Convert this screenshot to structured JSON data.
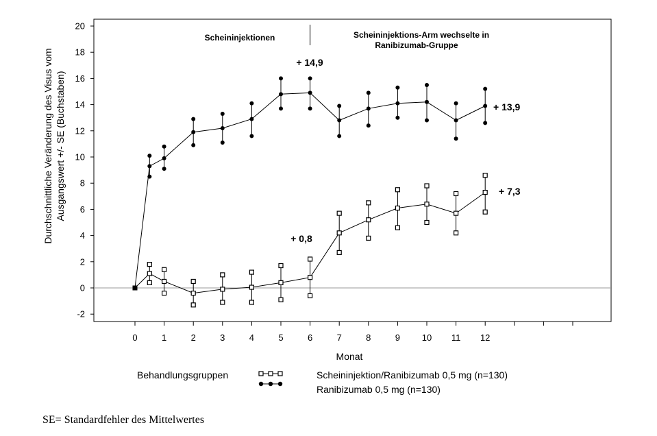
{
  "chart_data": {
    "type": "line",
    "ylabel_line1": "Durchschnittliche Veränderung des Visus vom",
    "ylabel_line2": "Ausgangswert +/- SE (Buchstaben)",
    "xlabel": "Monat",
    "ylim": [
      -2,
      20
    ],
    "yticks": [
      -2,
      0,
      2,
      4,
      6,
      8,
      10,
      12,
      14,
      16,
      18,
      20
    ],
    "xticks": [
      0,
      1,
      2,
      3,
      4,
      5,
      6,
      7,
      8,
      9,
      10,
      11,
      12
    ],
    "phase_left": "Scheininjektionen",
    "phase_right_line1": "Scheininjektions-Arm wechselte in",
    "phase_right_line2": "Ranibizumab-Gruppe",
    "legend_title": "Behandlungsgruppen",
    "series": [
      {
        "name": "Scheininjektion/Ranibizumab 0,5 mg (n=130)",
        "marker": "square",
        "x": [
          0,
          0.5,
          1,
          2,
          3,
          4,
          5,
          6,
          7,
          8,
          9,
          10,
          11,
          12
        ],
        "y": [
          0,
          1.1,
          0.5,
          -0.4,
          -0.1,
          0.05,
          0.4,
          0.8,
          4.2,
          5.2,
          6.1,
          6.4,
          5.7,
          7.3
        ],
        "upper": [
          0,
          1.8,
          1.4,
          0.5,
          1.0,
          1.2,
          1.7,
          2.2,
          5.7,
          6.5,
          7.5,
          7.8,
          7.2,
          8.6
        ],
        "lower": [
          0,
          0.4,
          -0.4,
          -1.3,
          -1.1,
          -1.1,
          -0.9,
          -0.6,
          2.7,
          3.8,
          4.6,
          5.0,
          4.2,
          5.8
        ]
      },
      {
        "name": "Ranibizumab 0,5 mg (n=130)",
        "marker": "circle",
        "x": [
          0,
          0.5,
          1,
          2,
          3,
          4,
          5,
          6,
          7,
          8,
          9,
          10,
          11,
          12
        ],
        "y": [
          0,
          9.3,
          9.9,
          11.9,
          12.2,
          12.9,
          14.8,
          14.9,
          12.8,
          13.7,
          14.1,
          14.2,
          12.8,
          13.9
        ],
        "upper": [
          0,
          10.1,
          10.8,
          12.9,
          13.3,
          14.1,
          16.0,
          16.0,
          13.9,
          14.9,
          15.3,
          15.5,
          14.1,
          15.2
        ],
        "lower": [
          0,
          8.5,
          9.1,
          10.9,
          11.1,
          11.6,
          13.7,
          13.7,
          11.6,
          12.4,
          13.0,
          12.8,
          11.4,
          12.6
        ]
      }
    ],
    "annotations": {
      "ranibizumab_peak": "+ 14,9",
      "ranibizumab_end": "+ 13,9",
      "sham_month6": "+ 0,8",
      "sham_end": "+ 7,3"
    }
  },
  "footnote": "SE= Standardfehler des Mittelwertes"
}
